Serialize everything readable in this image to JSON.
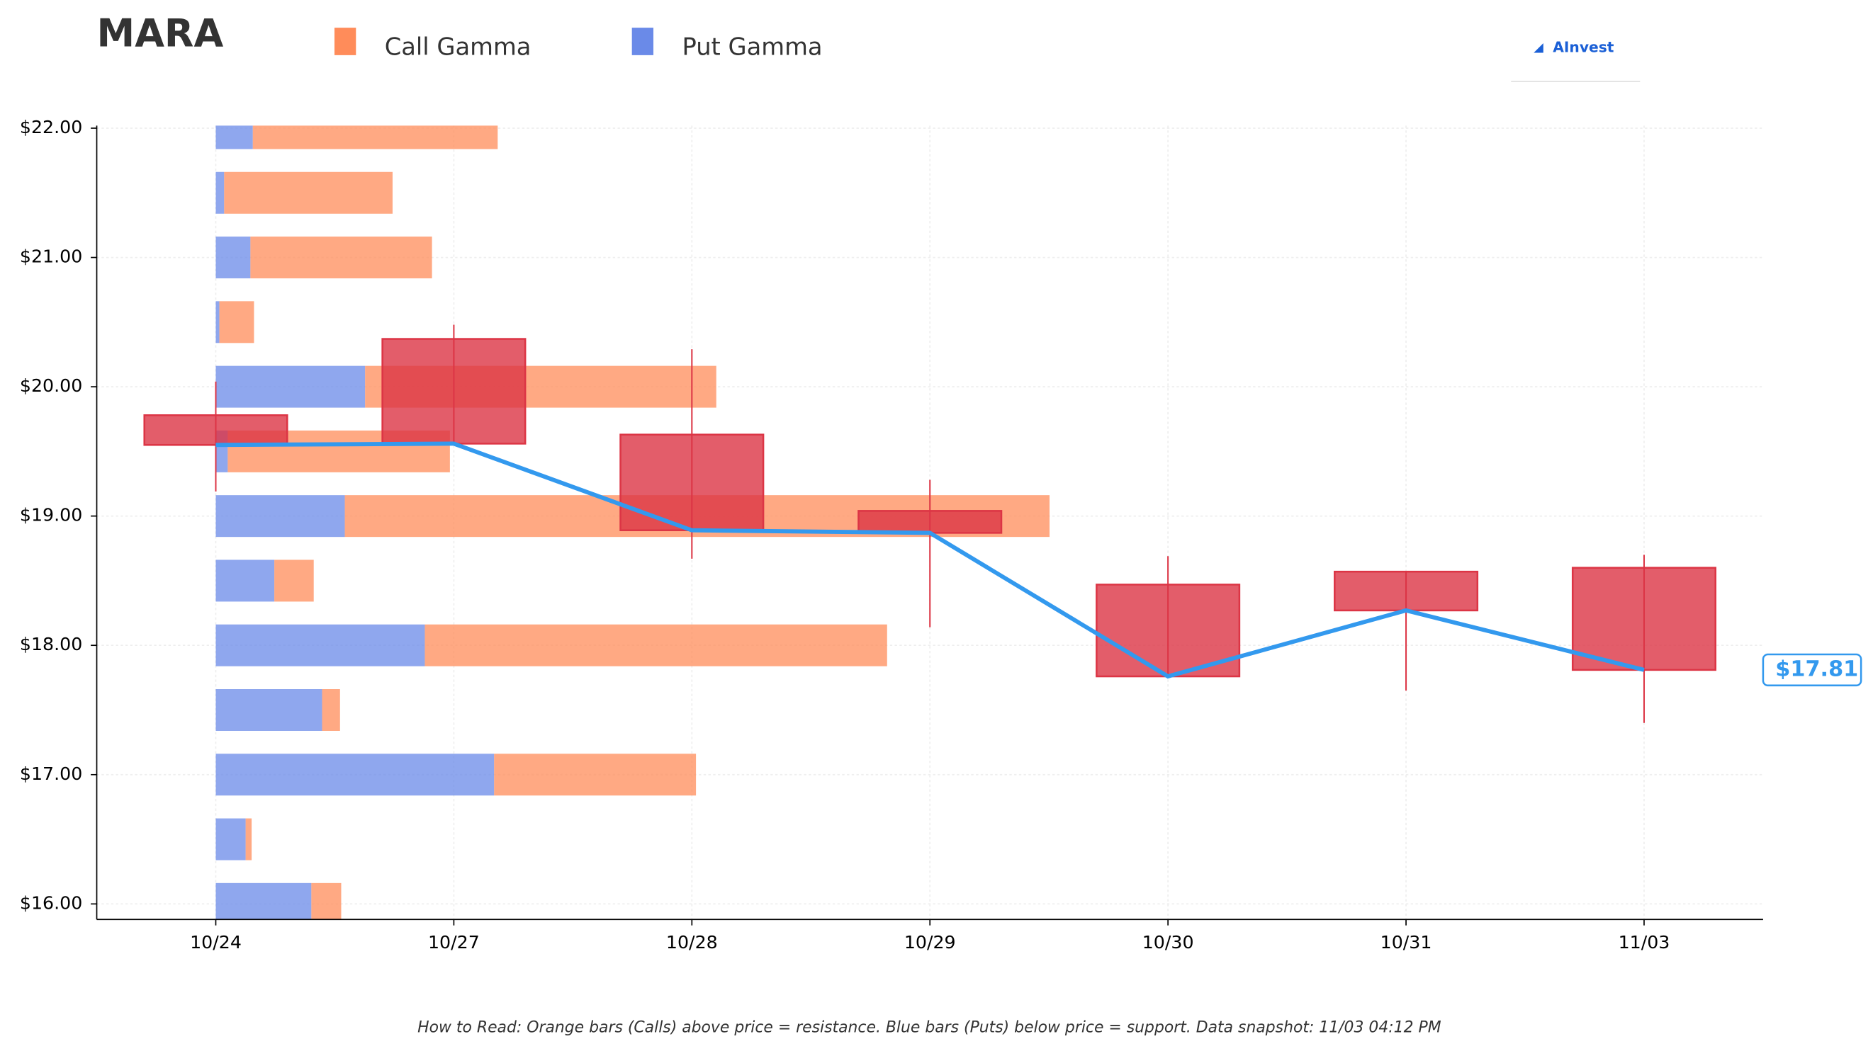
{
  "chart_data": {
    "type": "candlestick",
    "title": "MARA",
    "brand": "AInvest",
    "footnote": "How to Read: Orange bars (Calls) above price = resistance. Blue bars (Puts) below price = support. Data snapshot: 11/03 04:12 PM",
    "categories": [
      "10/24",
      "10/27",
      "10/28",
      "10/29",
      "10/30",
      "10/31",
      "11/03"
    ],
    "open": [
      19.78,
      20.37,
      19.63,
      19.04,
      18.47,
      18.57,
      18.6
    ],
    "high": [
      20.04,
      20.48,
      20.29,
      19.28,
      18.69,
      18.57,
      18.7
    ],
    "low": [
      19.19,
      19.55,
      18.67,
      18.14,
      17.76,
      17.65,
      17.4
    ],
    "close": [
      19.55,
      19.56,
      18.89,
      18.87,
      17.76,
      18.27,
      17.81
    ],
    "candle_color": "#dc3545",
    "line_color": "#3399ee",
    "last_price": {
      "value": 17.81,
      "label": "$17.81"
    },
    "ylim": [
      15.88,
      22.02
    ],
    "yticks": [
      {
        "value": 16,
        "label": "$16.00"
      },
      {
        "value": 17,
        "label": "$17.00"
      },
      {
        "value": 18,
        "label": "$18.00"
      },
      {
        "value": 19,
        "label": "$19.00"
      },
      {
        "value": 20,
        "label": "$20.00"
      },
      {
        "value": 21,
        "label": "$21.00"
      },
      {
        "value": 22,
        "label": "$22.00"
      }
    ],
    "grid": true,
    "gamma": {
      "strikes": [
        22.0,
        21.5,
        21.0,
        20.5,
        20.0,
        19.5,
        19.0,
        18.5,
        18.0,
        17.5,
        17.0,
        16.5,
        16.0
      ],
      "series": [
        {
          "name": "Call Gamma",
          "color": "#ff8c5a",
          "values": [
            205,
            141,
            152,
            29,
            294,
            186,
            590,
            33,
            387,
            15,
            169,
            5,
            25
          ]
        },
        {
          "name": "Put Gamma",
          "color": "#6a8ae8",
          "values": [
            31,
            7,
            29,
            3,
            125,
            10,
            108,
            49,
            175,
            89,
            233,
            25,
            80
          ]
        }
      ]
    }
  }
}
